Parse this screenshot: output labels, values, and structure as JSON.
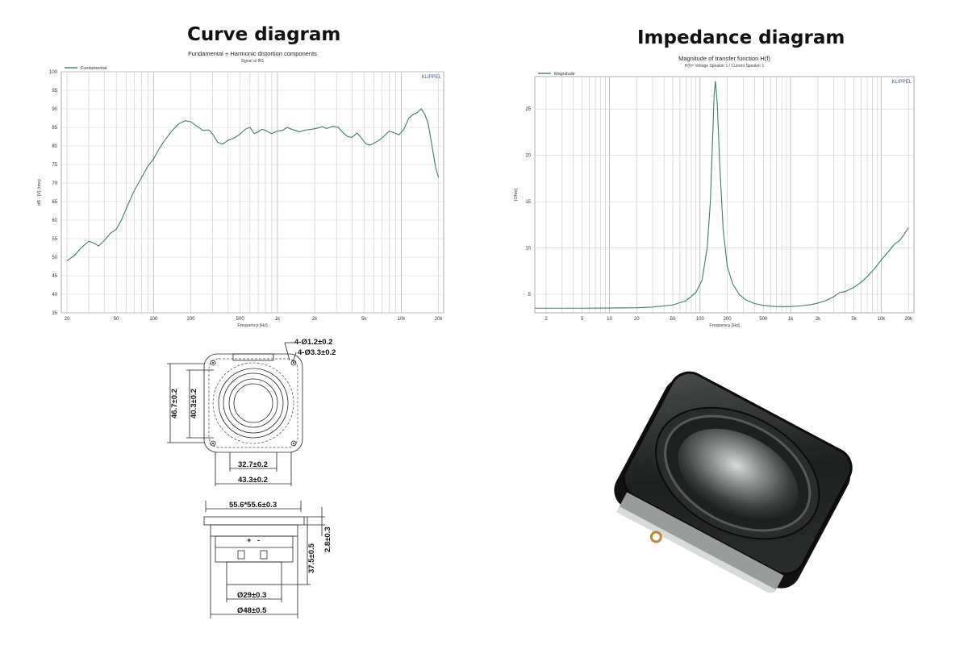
{
  "headings": {
    "left": "Curve diagram",
    "right": "Impedance diagram"
  },
  "chart_data": [
    {
      "type": "line",
      "title": "Fundamental + Harmonic distortion components",
      "subtitle": "Signal at IN1",
      "brand": "KLIPPEL",
      "xlabel": "Frequency [Hz]",
      "ylabel": "dB - [V] (rms)",
      "xscale": "log",
      "xlim": [
        18,
        22000
      ],
      "ylim": [
        35,
        100
      ],
      "yticks": [
        35,
        40,
        45,
        50,
        55,
        60,
        65,
        70,
        75,
        80,
        85,
        90,
        95,
        100
      ],
      "xticks": [
        "20",
        "50",
        "100",
        "200",
        "500",
        "1k",
        "2k",
        "5k",
        "10k",
        "20k"
      ],
      "xtick_values": [
        20,
        50,
        100,
        200,
        500,
        1000,
        2000,
        5000,
        10000,
        20000
      ],
      "legend_placement": "top-left",
      "grid": true,
      "color": "#3e7a70",
      "series": [
        {
          "name": "Fundamental",
          "x": [
            20,
            23,
            26,
            30,
            33,
            36,
            40,
            45,
            50,
            55,
            60,
            70,
            80,
            90,
            100,
            110,
            120,
            140,
            160,
            180,
            200,
            220,
            250,
            280,
            300,
            330,
            360,
            400,
            450,
            500,
            550,
            600,
            650,
            700,
            750,
            800,
            900,
            1000,
            1100,
            1200,
            1300,
            1400,
            1500,
            1700,
            1900,
            2100,
            2300,
            2500,
            2800,
            3100,
            3400,
            3700,
            4000,
            4400,
            4800,
            5200,
            5600,
            6000,
            6600,
            7200,
            8000,
            8800,
            9600,
            10500,
            11500,
            12500,
            13500,
            14500,
            15500,
            16500,
            17500,
            19000,
            20000
          ],
          "y": [
            49,
            50.5,
            52.5,
            54.3,
            53.8,
            53,
            54.5,
            56.5,
            57.5,
            60,
            63,
            68,
            71.5,
            74.5,
            76.5,
            79,
            81,
            84,
            86,
            86.8,
            86.5,
            85.5,
            84.2,
            84.3,
            83.2,
            81,
            80.5,
            81.5,
            82.2,
            83.2,
            84.5,
            85,
            83.3,
            83.8,
            84.5,
            84.2,
            83.3,
            84,
            84.2,
            85,
            84.5,
            84.2,
            83.8,
            84.3,
            84.5,
            84.8,
            85.2,
            84.7,
            85.3,
            85,
            83.5,
            82.5,
            82.3,
            83.5,
            82,
            80.5,
            80.2,
            80.7,
            81.5,
            82.5,
            84,
            83.5,
            83,
            84.5,
            87.5,
            88.5,
            89,
            90,
            88.5,
            86,
            81,
            74,
            71.5
          ]
        }
      ]
    },
    {
      "type": "line",
      "title": "Magnitude of transfer function H(f)",
      "subtitle": "H(f)= Voltage Speaker 1 / Current Speaker 1",
      "brand": "KLIPPEL",
      "xlabel": "Frequency [Hz]",
      "ylabel": "[Ohm]",
      "xscale": "log",
      "xlim": [
        1.5,
        23000
      ],
      "ylim": [
        3,
        28.5
      ],
      "yticks": [
        5,
        10,
        15,
        20,
        25
      ],
      "xticks": [
        "2",
        "5",
        "10",
        "20",
        "50",
        "100",
        "200",
        "500",
        "1k",
        "2k",
        "5k",
        "10k",
        "20k"
      ],
      "xtick_values": [
        2,
        5,
        10,
        20,
        50,
        100,
        200,
        500,
        1000,
        2000,
        5000,
        10000,
        20000
      ],
      "legend_placement": "top-left",
      "grid": true,
      "color": "#3e7a70",
      "series": [
        {
          "name": "Magnitude",
          "x": [
            1.5,
            3,
            5,
            10,
            20,
            30,
            50,
            70,
            90,
            105,
            120,
            130,
            138,
            143,
            148,
            155,
            165,
            180,
            200,
            230,
            270,
            320,
            400,
            500,
            600,
            700,
            850,
            1000,
            1300,
            1700,
            2000,
            2500,
            3000,
            3500,
            4000,
            5000,
            6000,
            7000,
            8000,
            9000,
            10000,
            12000,
            14000,
            16000,
            18000,
            20000
          ],
          "y": [
            3.5,
            3.5,
            3.5,
            3.52,
            3.55,
            3.62,
            3.85,
            4.3,
            5.2,
            6.5,
            10,
            15,
            22,
            26.5,
            28,
            25.5,
            19,
            12,
            8,
            6.1,
            5,
            4.4,
            4,
            3.8,
            3.72,
            3.68,
            3.66,
            3.68,
            3.75,
            3.9,
            4.05,
            4.35,
            4.75,
            5.2,
            5.3,
            5.75,
            6.3,
            6.9,
            7.5,
            8.1,
            8.7,
            9.6,
            10.4,
            10.8,
            11.5,
            12.2
          ]
        }
      ]
    }
  ],
  "drawing": {
    "top_view": {
      "holes_callout_1": "4-Ø1.2±0.2",
      "holes_callout_2": "4-Ø3.3±0.2",
      "height_outer": "46.7±0.2",
      "height_inner": "40.3±0.2",
      "width_inner": "32.7±0.2",
      "width_outer": "43.3±0.2"
    },
    "side_view": {
      "frame": "55.6*55.6±0.3",
      "depth": "37.5±0.5",
      "flange": "2.8±0.3",
      "magnet": "Ø29±0.3",
      "basket": "Ø48±0.5",
      "terminal_plus": "+",
      "terminal_minus": "-"
    }
  }
}
